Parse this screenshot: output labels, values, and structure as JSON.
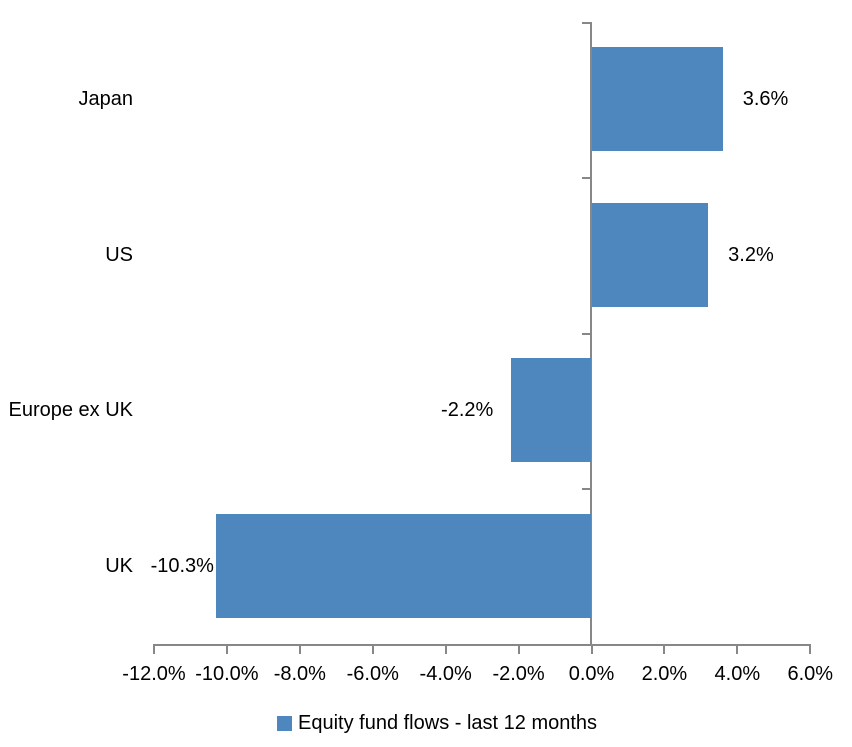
{
  "chart_data": {
    "type": "bar",
    "orientation": "horizontal",
    "title": "",
    "xlabel": "",
    "ylabel": "",
    "categories": [
      "Japan",
      "US",
      "Europe ex UK",
      "UK"
    ],
    "values": [
      3.6,
      3.2,
      -2.2,
      -10.3
    ],
    "data_labels": [
      "3.6%",
      "3.2%",
      "-2.2%",
      "-10.3%"
    ],
    "series": [
      {
        "name": "Equity fund flows - last 12 months",
        "values": [
          3.6,
          3.2,
          -2.2,
          -10.3
        ]
      }
    ],
    "xlim": [
      -12,
      6
    ],
    "x_tick_step": 2,
    "x_tick_labels": [
      "-12.0%",
      "-10.0%",
      "-8.0%",
      "-6.0%",
      "-4.0%",
      "-2.0%",
      "0.0%",
      "2.0%",
      "4.0%",
      "6.0%"
    ],
    "grid": false,
    "legend_position": "bottom",
    "bar_color": "#4E87BE",
    "axis_color": "#878787",
    "text_color": "#000000"
  },
  "legend": {
    "label": "Equity fund flows - last 12 months",
    "swatch_color": "#4E87BE"
  }
}
